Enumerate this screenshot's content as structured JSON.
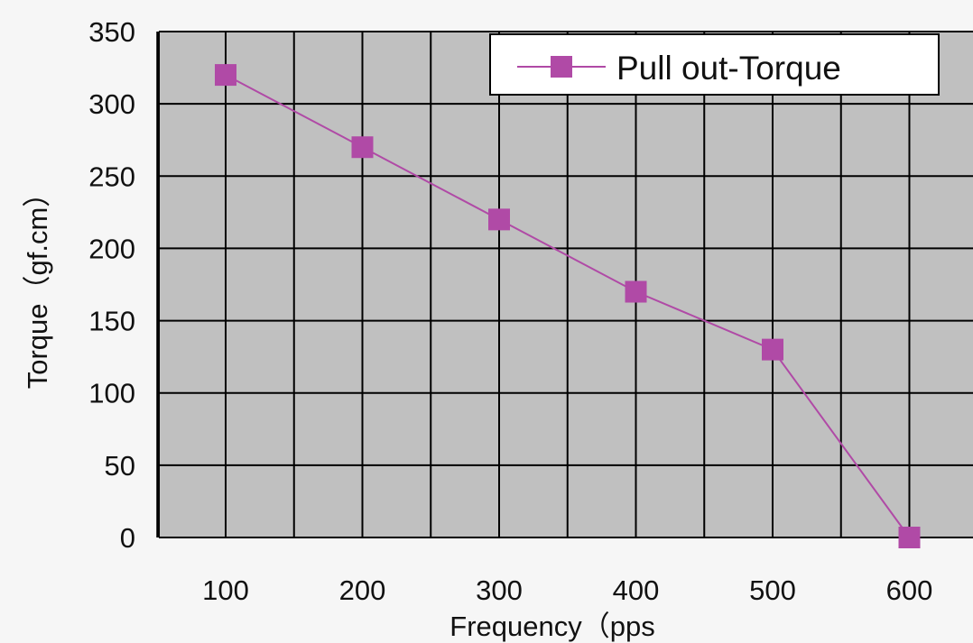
{
  "chart_data": {
    "type": "line",
    "x": [
      100,
      200,
      300,
      400,
      500,
      600
    ],
    "series": [
      {
        "name": "Pull out-Torque",
        "values": [
          320,
          270,
          220,
          170,
          130,
          0
        ]
      }
    ],
    "xlabel": "Frequency（pps",
    "ylabel": "Torque（gf.cm）",
    "xticks": [
      "100",
      "200",
      "300",
      "400",
      "500",
      "600"
    ],
    "yticks": [
      "0",
      "50",
      "100",
      "150",
      "200",
      "250",
      "300",
      "350"
    ],
    "ylim": [
      0,
      350
    ],
    "grid": true,
    "legend_position": "top-right",
    "colors": {
      "series": "#b04aa6",
      "plot_background": "#c0c0c0",
      "grid": "#000000",
      "page_background": "#f6f6f6"
    }
  }
}
